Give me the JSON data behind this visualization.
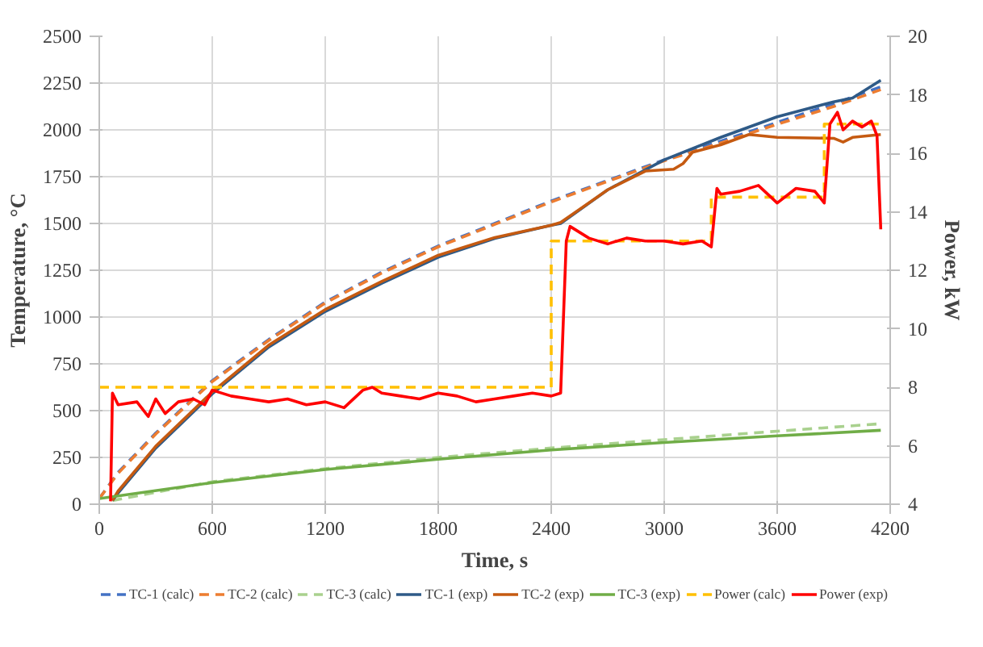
{
  "chart_data": {
    "type": "line",
    "xlabel": "Time, s",
    "ylabel": "Temperature, °C",
    "y2label": "Power, kW",
    "xlim": [
      0,
      4200
    ],
    "xticks": [
      0,
      600,
      1200,
      1800,
      2400,
      3000,
      3600,
      4200
    ],
    "ylim": [
      0,
      2500
    ],
    "yticks": [
      0,
      250,
      500,
      750,
      1000,
      1250,
      1500,
      1750,
      2000,
      2250,
      2500
    ],
    "y2lim": [
      4,
      20
    ],
    "y2ticks": [
      4,
      6,
      8,
      10,
      12,
      14,
      16,
      18,
      20
    ],
    "grid": true,
    "legend": "bottom",
    "series": [
      {
        "name": "TC-1 (calc)",
        "color": "#4472c4",
        "line_style": "dashed",
        "x": [
          0,
          100,
          300,
          600,
          900,
          1200,
          1500,
          1800,
          2100,
          2400,
          2700,
          3000,
          3300,
          3600,
          3900,
          4150
        ],
        "values": [
          30,
          170,
          380,
          660,
          880,
          1080,
          1240,
          1380,
          1500,
          1620,
          1730,
          1840,
          1940,
          2040,
          2140,
          2230
        ]
      },
      {
        "name": "TC-2 (calc)",
        "color": "#ed7d31",
        "line_style": "dashed",
        "x": [
          0,
          100,
          300,
          600,
          900,
          1200,
          1500,
          1800,
          2100,
          2400,
          2700,
          3000,
          3300,
          3600,
          3900,
          4150
        ],
        "values": [
          30,
          165,
          375,
          655,
          875,
          1075,
          1235,
          1375,
          1495,
          1615,
          1725,
          1835,
          1930,
          2030,
          2125,
          2215
        ]
      },
      {
        "name": "TC-3 (calc)",
        "color": "#a9d18e",
        "line_style": "dashed",
        "x": [
          70,
          600,
          1200,
          1800,
          2400,
          3000,
          3600,
          4150
        ],
        "values": [
          20,
          120,
          190,
          250,
          300,
          345,
          390,
          430
        ]
      },
      {
        "name": "TC-1 (exp)",
        "color": "#2e5a87",
        "line_style": "solid",
        "x": [
          70,
          100,
          300,
          600,
          900,
          1200,
          1500,
          1800,
          2100,
          2400,
          2450,
          2700,
          3000,
          3300,
          3600,
          3900,
          4000,
          4150
        ],
        "values": [
          20,
          60,
          300,
          590,
          840,
          1030,
          1180,
          1320,
          1420,
          1490,
          1500,
          1680,
          1840,
          1960,
          2070,
          2150,
          2170,
          2265
        ]
      },
      {
        "name": "TC-2 (exp)",
        "color": "#c55a11",
        "line_style": "solid",
        "x": [
          70,
          100,
          300,
          600,
          900,
          1200,
          1500,
          1800,
          2100,
          2400,
          2450,
          2700,
          2900,
          3050,
          3100,
          3150,
          3300,
          3450,
          3600,
          3900,
          3950,
          4000,
          4150
        ],
        "values": [
          20,
          70,
          310,
          600,
          850,
          1040,
          1190,
          1330,
          1425,
          1490,
          1505,
          1680,
          1780,
          1790,
          1820,
          1880,
          1920,
          1975,
          1960,
          1955,
          1935,
          1960,
          1975
        ]
      },
      {
        "name": "TC-3 (exp)",
        "color": "#70ad47",
        "line_style": "solid",
        "x": [
          0,
          600,
          1200,
          1800,
          2400,
          3000,
          3600,
          4150
        ],
        "values": [
          30,
          115,
          185,
          240,
          290,
          330,
          365,
          395
        ]
      },
      {
        "name": "Power (calc)",
        "color": "#ffc000",
        "line_style": "dashed",
        "axis": "y2",
        "x": [
          0,
          2400,
          2400,
          3250,
          3250,
          3850,
          3850,
          4150
        ],
        "values": [
          8,
          8,
          13,
          13,
          14.5,
          14.5,
          17,
          17
        ]
      },
      {
        "name": "Power (exp)",
        "color": "#ff0000",
        "line_style": "solid",
        "axis": "y2",
        "x": [
          60,
          70,
          100,
          200,
          260,
          300,
          350,
          420,
          500,
          560,
          600,
          700,
          800,
          900,
          1000,
          1100,
          1200,
          1300,
          1400,
          1450,
          1500,
          1600,
          1700,
          1800,
          1900,
          2000,
          2100,
          2200,
          2300,
          2400,
          2450,
          2480,
          2500,
          2600,
          2700,
          2800,
          2900,
          3000,
          3100,
          3200,
          3250,
          3280,
          3300,
          3400,
          3500,
          3600,
          3700,
          3800,
          3850,
          3880,
          3920,
          3950,
          4000,
          4050,
          4100,
          4130,
          4150
        ],
        "values": [
          4.1,
          7.8,
          7.4,
          7.5,
          7.0,
          7.6,
          7.1,
          7.5,
          7.6,
          7.4,
          7.9,
          7.7,
          7.6,
          7.5,
          7.6,
          7.4,
          7.5,
          7.3,
          7.9,
          8.0,
          7.8,
          7.7,
          7.6,
          7.8,
          7.7,
          7.5,
          7.6,
          7.7,
          7.8,
          7.7,
          7.8,
          13.0,
          13.5,
          13.1,
          12.9,
          13.1,
          13.0,
          13.0,
          12.9,
          13.0,
          12.8,
          14.8,
          14.6,
          14.7,
          14.9,
          14.3,
          14.8,
          14.7,
          14.3,
          17.0,
          17.4,
          16.8,
          17.1,
          16.9,
          17.1,
          16.6,
          13.4
        ]
      }
    ]
  }
}
